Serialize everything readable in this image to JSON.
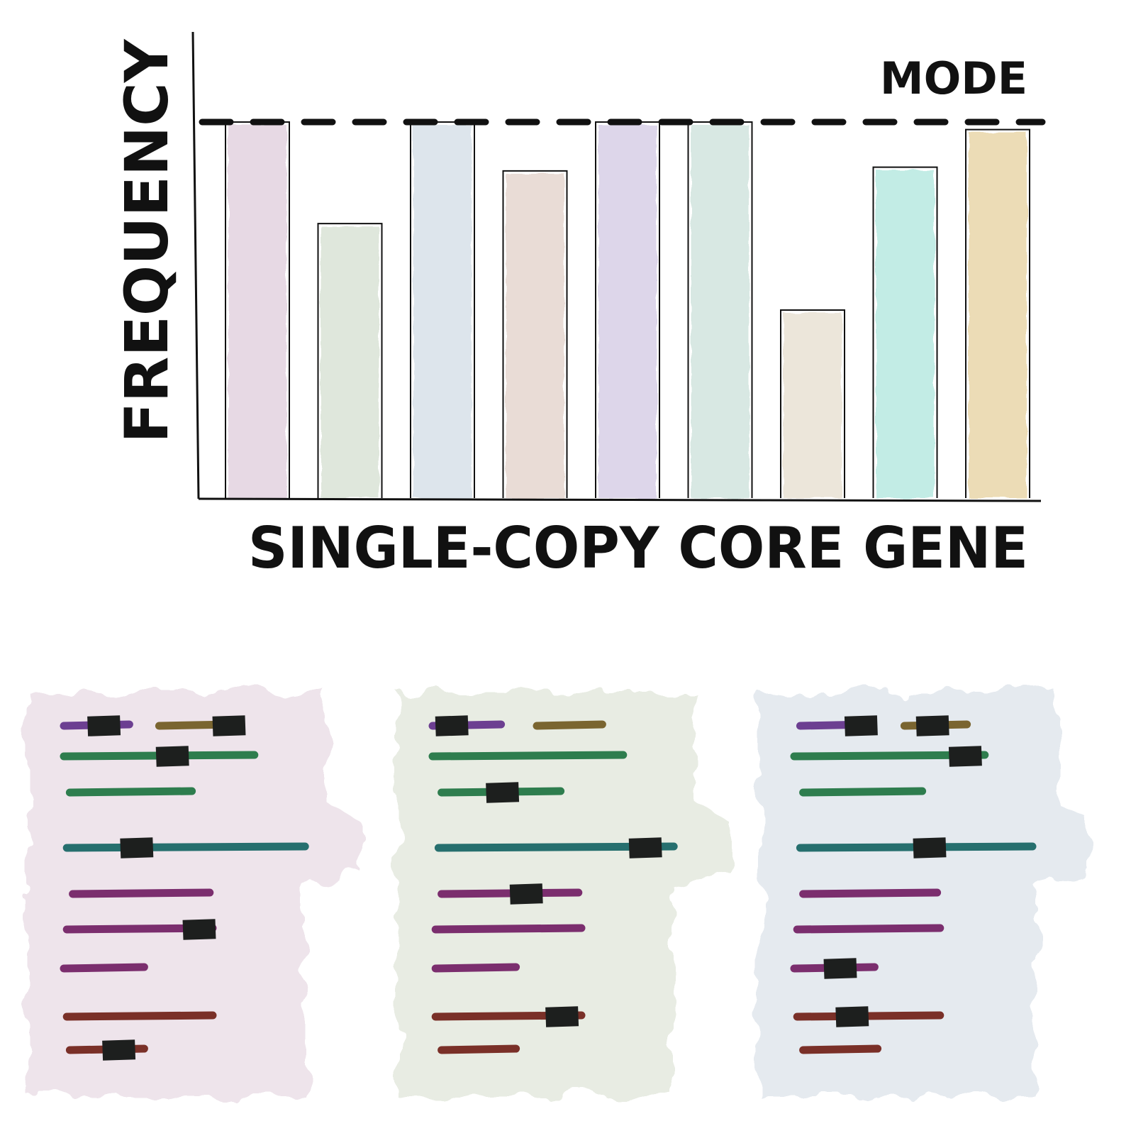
{
  "chart_data": {
    "type": "bar",
    "title": "",
    "xlabel": "SINGLE-COPY CORE GENE",
    "ylabel": "FREQUENCY",
    "ylim": [
      0,
      100
    ],
    "grid": false,
    "annotation": {
      "label": "MODE",
      "value": 100
    },
    "bars": [
      {
        "value": 100,
        "color": "#e7d9e4"
      },
      {
        "value": 73,
        "color": "#dfe7dc"
      },
      {
        "value": 100,
        "color": "#dde5ec"
      },
      {
        "value": 87,
        "color": "#e9dcd6"
      },
      {
        "value": 100,
        "color": "#ddd6ea"
      },
      {
        "value": 100,
        "color": "#d8e8e3"
      },
      {
        "value": 50,
        "color": "#ece6da"
      },
      {
        "value": 88,
        "color": "#c2ece5"
      },
      {
        "value": 98,
        "color": "#ecdcb6"
      }
    ]
  },
  "genomes": [
    {
      "color": "#eee4eb",
      "lines": [
        {
          "segments": [
            {
              "start": 0,
              "end": 0.22,
              "color": "#6c3f91"
            },
            {
              "start": 0.32,
              "end": 0.56,
              "color": "#7a6530"
            }
          ],
          "marks": [
            0.08,
            0.5
          ]
        },
        {
          "segments": [
            {
              "start": 0,
              "end": 0.64,
              "color": "#2e7d4e"
            }
          ],
          "marks": [
            0.31
          ]
        },
        {
          "segments": [
            {
              "start": 0.02,
              "end": 0.43,
              "color": "#2e7d4e"
            }
          ],
          "marks": []
        },
        {
          "segments": [
            {
              "start": 0.01,
              "end": 0.81,
              "color": "#266f6e"
            }
          ],
          "marks": [
            0.19
          ]
        },
        {
          "segments": [
            {
              "start": 0.03,
              "end": 0.49,
              "color": "#7b2e6e"
            }
          ],
          "marks": []
        },
        {
          "segments": [
            {
              "start": 0.01,
              "end": 0.5,
              "color": "#7b2e6e"
            }
          ],
          "marks": [
            0.4
          ]
        },
        {
          "segments": [
            {
              "start": 0,
              "end": 0.27,
              "color": "#7b2e6e"
            }
          ],
          "marks": []
        },
        {
          "segments": [
            {
              "start": 0.01,
              "end": 0.5,
              "color": "#7a3028"
            }
          ],
          "marks": []
        },
        {
          "segments": [
            {
              "start": 0.02,
              "end": 0.27,
              "color": "#7a3028"
            }
          ],
          "marks": [
            0.13
          ]
        }
      ]
    },
    {
      "color": "#e8ece3",
      "lines": [
        {
          "segments": [
            {
              "start": 0,
              "end": 0.23,
              "color": "#6c3f91"
            },
            {
              "start": 0.35,
              "end": 0.57,
              "color": "#7a6530"
            }
          ],
          "marks": [
            0.01
          ]
        },
        {
          "segments": [
            {
              "start": 0,
              "end": 0.64,
              "color": "#2e7d4e"
            }
          ],
          "marks": []
        },
        {
          "segments": [
            {
              "start": 0.03,
              "end": 0.43,
              "color": "#2e7d4e"
            }
          ],
          "marks": [
            0.18
          ]
        },
        {
          "segments": [
            {
              "start": 0.02,
              "end": 0.81,
              "color": "#266f6e"
            }
          ],
          "marks": [
            0.66
          ]
        },
        {
          "segments": [
            {
              "start": 0.03,
              "end": 0.49,
              "color": "#7b2e6e"
            }
          ],
          "marks": [
            0.26
          ]
        },
        {
          "segments": [
            {
              "start": 0.01,
              "end": 0.5,
              "color": "#7b2e6e"
            }
          ],
          "marks": []
        },
        {
          "segments": [
            {
              "start": 0.01,
              "end": 0.28,
              "color": "#7b2e6e"
            }
          ],
          "marks": []
        },
        {
          "segments": [
            {
              "start": 0.01,
              "end": 0.5,
              "color": "#7a3028"
            }
          ],
          "marks": [
            0.38
          ]
        },
        {
          "segments": [
            {
              "start": 0.03,
              "end": 0.28,
              "color": "#7a3028"
            }
          ],
          "marks": []
        }
      ]
    },
    {
      "color": "#e5eaef",
      "lines": [
        {
          "segments": [
            {
              "start": 0.02,
              "end": 0.25,
              "color": "#6c3f91"
            },
            {
              "start": 0.37,
              "end": 0.58,
              "color": "#7a6530"
            }
          ],
          "marks": [
            0.17,
            0.41
          ]
        },
        {
          "segments": [
            {
              "start": 0,
              "end": 0.64,
              "color": "#2e7d4e"
            }
          ],
          "marks": [
            0.52
          ]
        },
        {
          "segments": [
            {
              "start": 0.03,
              "end": 0.43,
              "color": "#2e7d4e"
            }
          ],
          "marks": []
        },
        {
          "segments": [
            {
              "start": 0.02,
              "end": 0.8,
              "color": "#266f6e"
            }
          ],
          "marks": [
            0.4
          ]
        },
        {
          "segments": [
            {
              "start": 0.03,
              "end": 0.48,
              "color": "#7b2e6e"
            }
          ],
          "marks": []
        },
        {
          "segments": [
            {
              "start": 0.01,
              "end": 0.49,
              "color": "#7b2e6e"
            }
          ],
          "marks": []
        },
        {
          "segments": [
            {
              "start": 0,
              "end": 0.27,
              "color": "#7b2e6e"
            }
          ],
          "marks": [
            0.1
          ]
        },
        {
          "segments": [
            {
              "start": 0.01,
              "end": 0.49,
              "color": "#7a3028"
            }
          ],
          "marks": [
            0.14
          ]
        },
        {
          "segments": [
            {
              "start": 0.03,
              "end": 0.28,
              "color": "#7a3028"
            }
          ],
          "marks": []
        }
      ]
    }
  ]
}
